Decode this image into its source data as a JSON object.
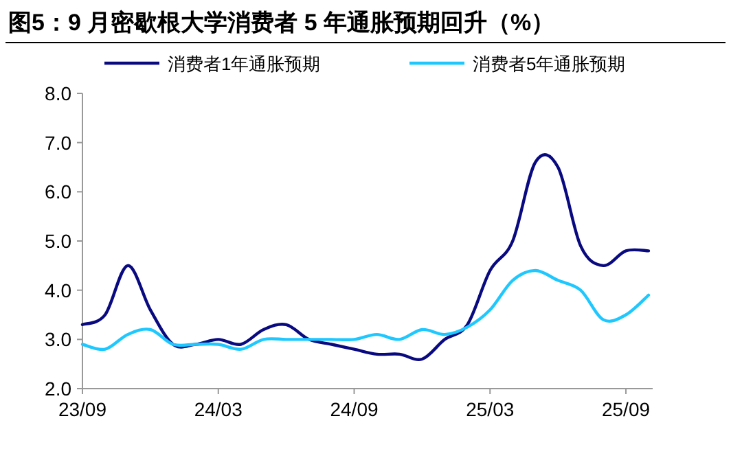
{
  "chart_data": {
    "type": "line",
    "title": "图5：9 月密歇根大学消费者 5 年通胀预期回升（%）",
    "categories": [
      "23/09",
      null,
      null,
      null,
      null,
      null,
      "24/03",
      null,
      null,
      null,
      null,
      null,
      "24/09",
      null,
      null,
      null,
      null,
      null,
      "25/03",
      null,
      null,
      null,
      null,
      null,
      "25/09",
      null
    ],
    "series": [
      {
        "name": "消费者1年通胀预期",
        "color": "#0a0a80",
        "values": [
          3.3,
          3.5,
          4.5,
          3.6,
          2.9,
          2.9,
          3.0,
          2.9,
          3.2,
          3.3,
          3.0,
          2.9,
          2.8,
          2.7,
          2.7,
          2.6,
          3.0,
          3.3,
          4.4,
          5.0,
          6.6,
          6.5,
          4.9,
          4.5,
          4.8,
          4.8
        ]
      },
      {
        "name": "消费者5年通胀预期",
        "color": "#1ec8ff",
        "values": [
          2.9,
          2.8,
          3.1,
          3.2,
          2.9,
          2.9,
          2.9,
          2.8,
          3.0,
          3.0,
          3.0,
          3.0,
          3.0,
          3.1,
          3.0,
          3.2,
          3.1,
          3.25,
          3.6,
          4.2,
          4.4,
          4.2,
          4.0,
          3.4,
          3.5,
          3.9
        ]
      }
    ],
    "ylim": [
      2,
      8
    ],
    "yticks": [
      {
        "value": 2,
        "label": "2.0"
      },
      {
        "value": 3,
        "label": "3.0"
      },
      {
        "value": 4,
        "label": "4.0"
      },
      {
        "value": 5,
        "label": "5.0"
      },
      {
        "value": 6,
        "label": "6.0"
      },
      {
        "value": 7,
        "label": "7.0"
      },
      {
        "value": 8,
        "label": "8.0"
      }
    ],
    "grid": false,
    "legend": "top",
    "line_style": "solid"
  }
}
